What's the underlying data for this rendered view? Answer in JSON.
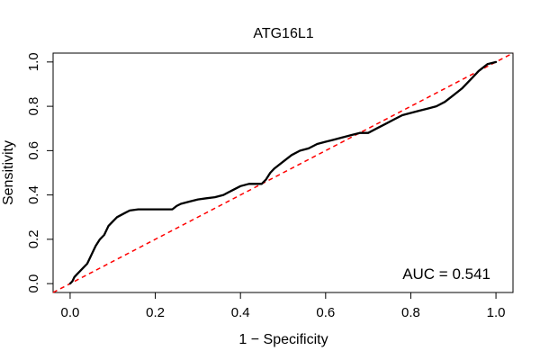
{
  "chart_data": {
    "type": "line",
    "title": "ATG16L1",
    "xlabel": "1 − Specificity",
    "ylabel": "Sensitivity",
    "xlim": [
      -0.04,
      1.04
    ],
    "ylim": [
      -0.04,
      1.04
    ],
    "xticks": [
      0.0,
      0.2,
      0.4,
      0.6,
      0.8,
      1.0
    ],
    "xtick_labels": [
      "0.0",
      "0.2",
      "0.4",
      "0.6",
      "0.8",
      "1.0"
    ],
    "yticks": [
      0.0,
      0.2,
      0.4,
      0.6,
      0.8,
      1.0
    ],
    "ytick_labels": [
      "0.0",
      "0.2",
      "0.4",
      "0.6",
      "0.8",
      "1.0"
    ],
    "annotation": "AUC = 0.541",
    "colors": {
      "roc": "#000000",
      "reference": "#ff0000",
      "frame": "#000000"
    },
    "series": [
      {
        "name": "ROC",
        "style": "solid",
        "x": [
          0.0,
          0.005,
          0.01,
          0.015,
          0.02,
          0.03,
          0.04,
          0.05,
          0.06,
          0.07,
          0.08,
          0.09,
          0.1,
          0.11,
          0.12,
          0.13,
          0.14,
          0.16,
          0.18,
          0.2,
          0.22,
          0.24,
          0.25,
          0.26,
          0.28,
          0.3,
          0.32,
          0.34,
          0.36,
          0.38,
          0.4,
          0.42,
          0.45,
          0.46,
          0.47,
          0.48,
          0.5,
          0.52,
          0.54,
          0.56,
          0.58,
          0.6,
          0.62,
          0.64,
          0.66,
          0.68,
          0.7,
          0.72,
          0.74,
          0.76,
          0.78,
          0.8,
          0.82,
          0.84,
          0.86,
          0.88,
          0.9,
          0.92,
          0.94,
          0.96,
          0.98,
          1.0
        ],
        "y": [
          0.0,
          0.01,
          0.03,
          0.04,
          0.05,
          0.07,
          0.09,
          0.13,
          0.17,
          0.2,
          0.22,
          0.26,
          0.28,
          0.3,
          0.31,
          0.32,
          0.33,
          0.335,
          0.335,
          0.335,
          0.335,
          0.335,
          0.35,
          0.36,
          0.37,
          0.38,
          0.385,
          0.39,
          0.4,
          0.42,
          0.44,
          0.45,
          0.45,
          0.47,
          0.5,
          0.52,
          0.55,
          0.58,
          0.6,
          0.61,
          0.63,
          0.64,
          0.65,
          0.66,
          0.67,
          0.68,
          0.68,
          0.7,
          0.72,
          0.74,
          0.76,
          0.77,
          0.78,
          0.79,
          0.8,
          0.82,
          0.85,
          0.88,
          0.92,
          0.96,
          0.99,
          1.0
        ]
      },
      {
        "name": "Reference",
        "style": "dashed",
        "x": [
          -0.04,
          1.04
        ],
        "y": [
          -0.04,
          1.04
        ]
      }
    ]
  }
}
